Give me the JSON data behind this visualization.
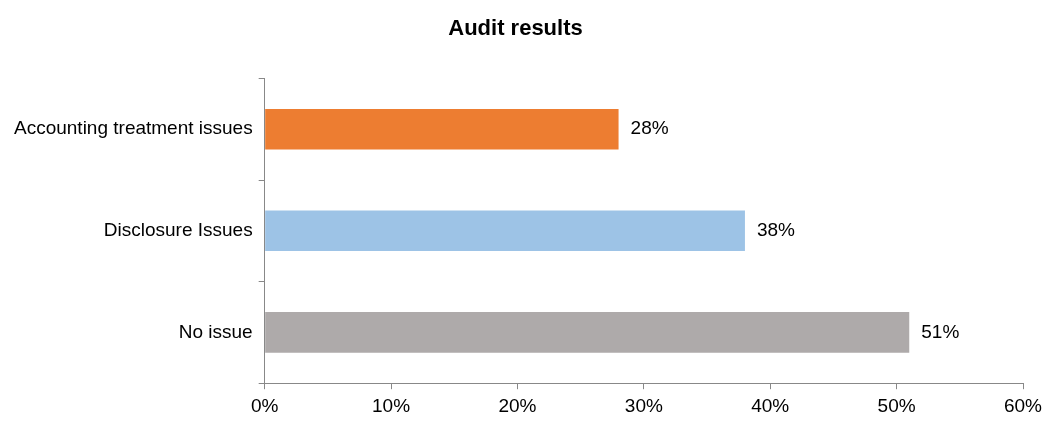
{
  "chart_data": {
    "type": "bar",
    "orientation": "horizontal",
    "title": "Audit results",
    "categories": [
      "Accounting treatment issues",
      "Disclosure Issues",
      "No issue"
    ],
    "values": [
      28,
      38,
      51
    ],
    "colors": [
      "#ed7d31",
      "#9dc3e6",
      "#aeaaaa"
    ],
    "value_labels": [
      "28%",
      "38%",
      "51%"
    ],
    "xlim": [
      0,
      60
    ],
    "xticks": [
      {
        "value": 0,
        "label": "0%"
      },
      {
        "value": 10,
        "label": "10%"
      },
      {
        "value": 20,
        "label": "20%"
      },
      {
        "value": 30,
        "label": "30%"
      },
      {
        "value": 40,
        "label": "40%"
      },
      {
        "value": 50,
        "label": "50%"
      },
      {
        "value": 60,
        "label": "60%"
      }
    ],
    "grid": false,
    "legend": false
  }
}
